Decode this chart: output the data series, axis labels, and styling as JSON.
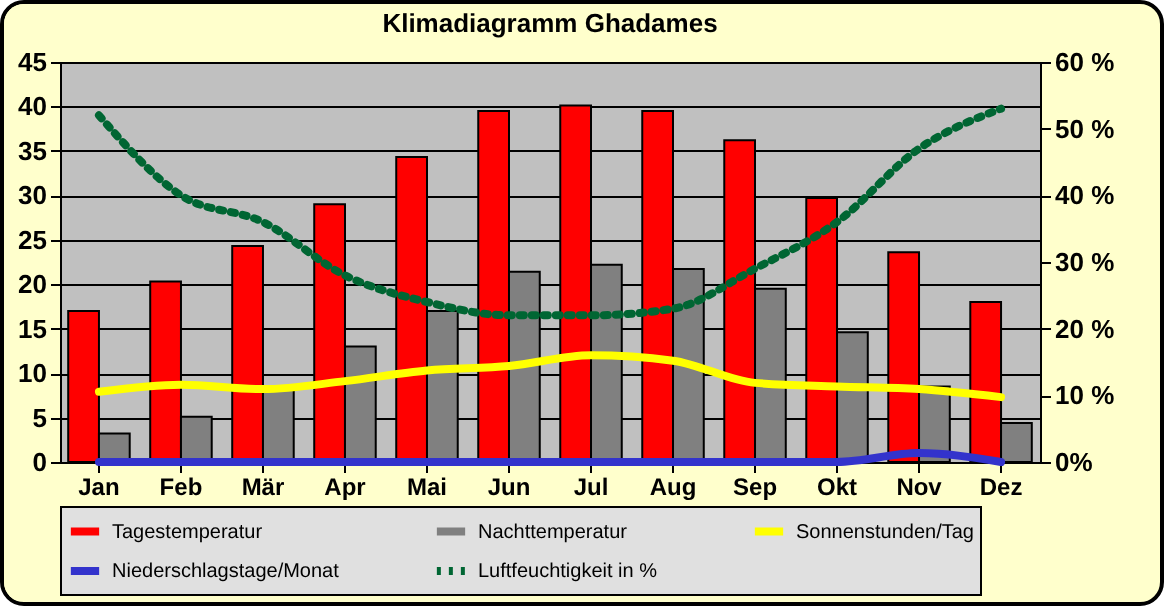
{
  "chart_data": {
    "type": "bar",
    "title": "Klimadiagramm Ghadames",
    "categories": [
      "Jan",
      "Feb",
      "Mär",
      "Apr",
      "Mai",
      "Jun",
      "Jul",
      "Aug",
      "Sep",
      "Okt",
      "Nov",
      "Dez"
    ],
    "series": [
      {
        "name": "Tagestemperatur",
        "color": "#ff0000",
        "values": [
          17,
          20.3,
          24.3,
          29,
          34.3,
          39.5,
          40.1,
          39.5,
          36.2,
          29.7,
          23.6,
          18
        ]
      },
      {
        "name": "Nachttemperatur",
        "color": "#808080",
        "values": [
          3.2,
          5.1,
          8.3,
          13,
          17,
          21.4,
          22.2,
          21.7,
          19.5,
          14.6,
          8.5,
          4.4
        ]
      },
      {
        "name": "Sonnenstunden/Tag",
        "type": "line",
        "color": "#ffff00",
        "values": [
          7.9,
          8.7,
          8.2,
          9.1,
          10.3,
          10.8,
          12,
          11.4,
          8.9,
          8.5,
          8.2,
          7.3
        ]
      },
      {
        "name": "Niederschlagstage/Monat",
        "type": "line",
        "color": "#3333cc",
        "values": [
          0,
          0,
          0,
          0,
          0,
          0,
          0,
          0,
          0,
          0,
          1,
          0
        ]
      },
      {
        "name": "Luftfeuchtigkeit in %",
        "type": "line",
        "color": "#006633",
        "line_style": "dotted",
        "axis": "y2",
        "values": [
          52,
          40,
          36,
          28,
          24,
          22,
          22,
          23,
          29,
          36,
          47,
          53
        ]
      }
    ],
    "ylim": [
      0,
      45
    ],
    "yticks": [
      0,
      5,
      10,
      15,
      20,
      25,
      30,
      35,
      40,
      45
    ],
    "y2lim": [
      0,
      60
    ],
    "y2ticks": [
      {
        "value": 0,
        "label": "0%"
      },
      {
        "value": 10,
        "label": "10 %"
      },
      {
        "value": 20,
        "label": "20 %"
      },
      {
        "value": 30,
        "label": "30 %"
      },
      {
        "value": 40,
        "label": "40 %"
      },
      {
        "value": 50,
        "label": "50 %"
      },
      {
        "value": 60,
        "label": "60 %"
      }
    ],
    "grid": "y",
    "legend": "bottom"
  }
}
